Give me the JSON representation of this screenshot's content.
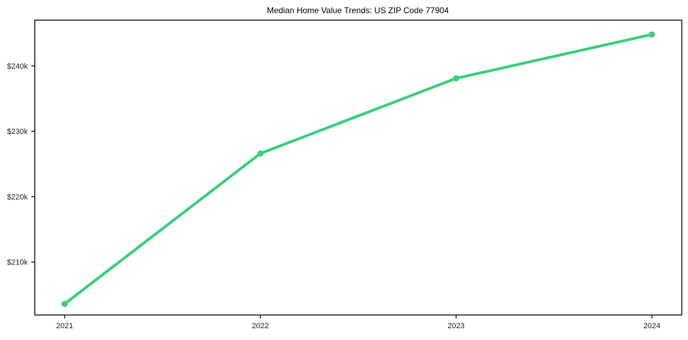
{
  "chart_data": {
    "type": "line",
    "title": "Median Home Value Trends: US ZIP Code 77904",
    "x_labels": [
      "2021",
      "2022",
      "2023",
      "2024"
    ],
    "x": [
      2021,
      2022,
      2023,
      2024
    ],
    "values": [
      203600,
      226600,
      238100,
      244800
    ],
    "yticks": {
      "values": [
        210000,
        220000,
        230000,
        240000
      ],
      "labels": [
        "$210k",
        "$220k",
        "$230k",
        "$240k"
      ]
    },
    "ylim": [
      201900,
      247000
    ],
    "grid": false,
    "legend": "none",
    "marker": "circle",
    "colors": {
      "line": "#3ecc7e",
      "marker": "#3ecc7e",
      "axis": "#000000",
      "tick_text": "#262626",
      "background": "#ffffff"
    }
  }
}
